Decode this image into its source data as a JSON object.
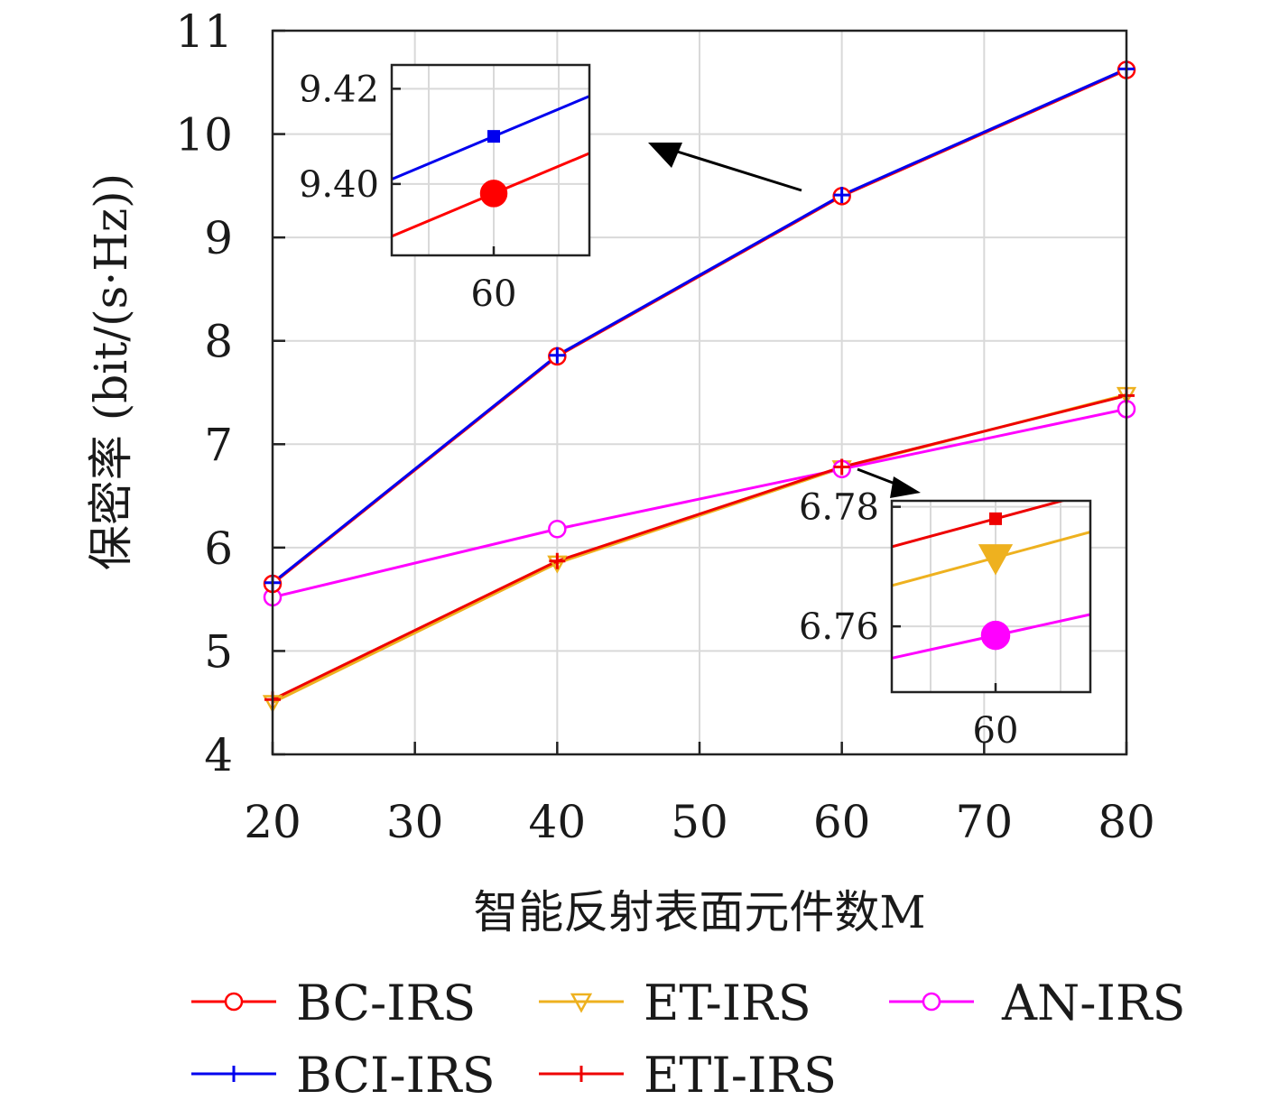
{
  "chart_data": {
    "type": "line",
    "xlabel": "智能反射表面元件数M",
    "ylabel": "保密率 (bit/(s·Hz))",
    "x": [
      20,
      40,
      60,
      80
    ],
    "xlim": [
      20,
      80
    ],
    "ylim": [
      4,
      11
    ],
    "xticks": [
      "20",
      "30",
      "40",
      "50",
      "60",
      "70",
      "80"
    ],
    "yticks": [
      "4",
      "5",
      "6",
      "7",
      "8",
      "9",
      "10",
      "11"
    ],
    "grid": true,
    "legend_position": "bottom",
    "series": [
      {
        "name": "BC-IRS",
        "color": "#ff0000",
        "marker": "circle",
        "values": [
          5.65,
          7.85,
          9.4,
          10.62
        ]
      },
      {
        "name": "ET-IRS",
        "color": "#eeb11f",
        "marker": "triangle-down",
        "values": [
          4.5,
          5.85,
          6.77,
          7.48
        ]
      },
      {
        "name": "AN-IRS",
        "color": "#ff00ff",
        "marker": "circle",
        "values": [
          5.52,
          6.18,
          6.76,
          7.34
        ]
      },
      {
        "name": "BCI-IRS",
        "color": "#0000ee",
        "marker": "plus",
        "values": [
          5.66,
          7.86,
          9.41,
          10.63
        ]
      },
      {
        "name": "ETI-IRS",
        "color": "#ee0000",
        "marker": "plus",
        "values": [
          4.53,
          5.87,
          6.78,
          7.47
        ]
      }
    ],
    "insets": [
      {
        "name": "upper-inset",
        "xtick": "60",
        "yticks": [
          "9.42",
          "9.40"
        ],
        "ylim": [
          9.385,
          9.425
        ],
        "points": [
          {
            "series": "BCI-IRS",
            "x": 60,
            "y": 9.41
          },
          {
            "series": "BC-IRS",
            "x": 60,
            "y": 9.398
          }
        ]
      },
      {
        "name": "lower-inset",
        "xtick": "60",
        "yticks": [
          "6.78",
          "6.76"
        ],
        "ylim": [
          6.749,
          6.781
        ],
        "points": [
          {
            "series": "ETI-IRS",
            "x": 60,
            "y": 6.778
          },
          {
            "series": "ET-IRS",
            "x": 60,
            "y": 6.7715
          },
          {
            "series": "AN-IRS",
            "x": 60,
            "y": 6.7585
          }
        ]
      }
    ]
  }
}
